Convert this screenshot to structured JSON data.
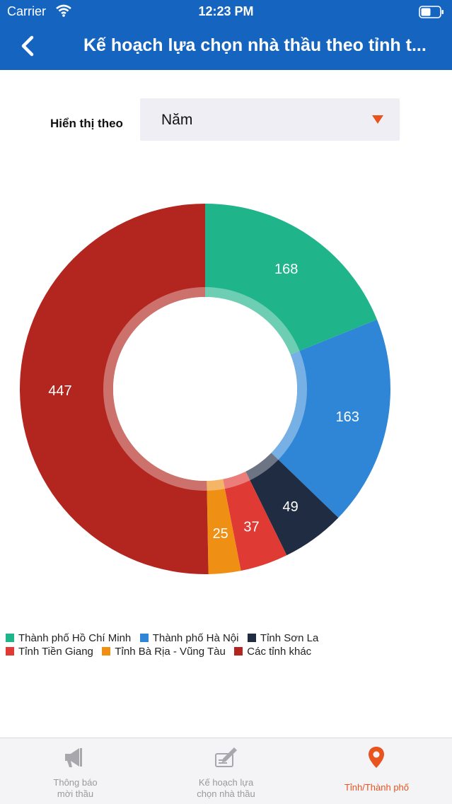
{
  "status_bar": {
    "carrier": "Carrier",
    "time": "12:23 PM"
  },
  "nav": {
    "title": "Kế hoạch lựa chọn nhà thầu theo tỉnh t..."
  },
  "filter": {
    "label": "Hiển thị theo",
    "value": "Năm"
  },
  "colors": {
    "header": "#1565c0",
    "accent": "#e8531e"
  },
  "chart_data": {
    "type": "pie",
    "donut": true,
    "legend_position": "bottom",
    "series": [
      {
        "name": "Thành phố Hồ Chí Minh",
        "value": 168,
        "color": "#20b48a"
      },
      {
        "name": "Thành phố Hà Nội",
        "value": 163,
        "color": "#2f86d6"
      },
      {
        "name": "Tỉnh Sơn La",
        "value": 49,
        "color": "#1f2c42"
      },
      {
        "name": "Tỉnh Tiền Giang",
        "value": 37,
        "color": "#e03a35"
      },
      {
        "name": "Tỉnh Bà Rịa - Vũng Tàu",
        "value": 25,
        "color": "#ef9015"
      },
      {
        "name": "Các tỉnh khác",
        "value": 447,
        "color": "#b3251f"
      }
    ]
  },
  "tabs": [
    {
      "label_line1": "Thông báo",
      "label_line2": "mời thầu",
      "icon": "megaphone-icon",
      "active": false
    },
    {
      "label_line1": "Kế hoạch lựa",
      "label_line2": "chọn nhà thầu",
      "icon": "plan-edit-icon",
      "active": false
    },
    {
      "label_line1": "Tỉnh/Thành phố",
      "label_line2": "",
      "icon": "location-pin-icon",
      "active": true
    }
  ]
}
